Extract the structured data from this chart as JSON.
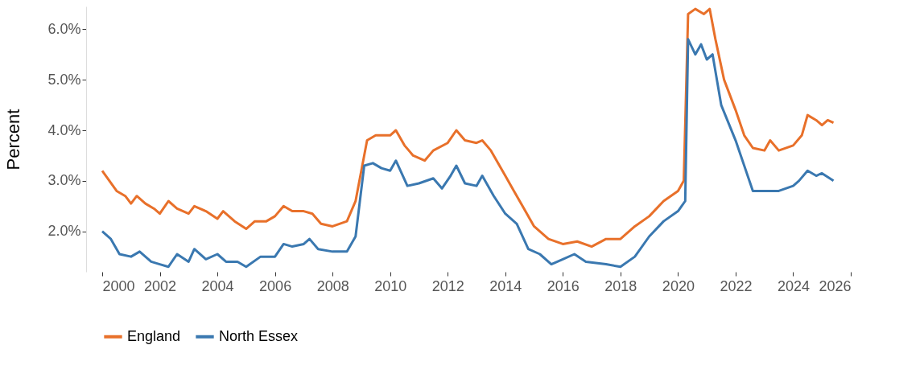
{
  "chart_data": {
    "type": "line",
    "ylabel": "Percent",
    "legend": "bottom",
    "grid": false,
    "line_style": "solid",
    "xlim": [
      2000,
      2026
    ],
    "xticks": [
      2000,
      2002,
      2004,
      2006,
      2008,
      2010,
      2012,
      2014,
      2016,
      2018,
      2020,
      2022,
      2024,
      2026
    ],
    "ylim": [
      1.2,
      6.45
    ],
    "yticks": [
      {
        "value": 2,
        "label": "2.0%"
      },
      {
        "value": 3,
        "label": "3.0%"
      },
      {
        "value": 4,
        "label": "4.0%"
      },
      {
        "value": 5,
        "label": "5.0%"
      },
      {
        "value": 6,
        "label": "6.0%"
      }
    ],
    "series": [
      {
        "name": "England",
        "color": "#e8702a",
        "x": [
          2000,
          2000.5,
          2000.8,
          2001,
          2001.2,
          2001.5,
          2001.8,
          2002,
          2002.3,
          2002.6,
          2003,
          2003.2,
          2003.6,
          2004,
          2004.2,
          2004.6,
          2005,
          2005.3,
          2005.7,
          2006,
          2006.3,
          2006.6,
          2007,
          2007.3,
          2007.6,
          2008,
          2008.5,
          2008.8,
          2009,
          2009.2,
          2009.5,
          2010,
          2010.2,
          2010.5,
          2010.8,
          2011.2,
          2011.5,
          2012,
          2012.3,
          2012.6,
          2013,
          2013.2,
          2013.5,
          2014,
          2014.3,
          2014.6,
          2015,
          2015.5,
          2016,
          2016.5,
          2017,
          2017.5,
          2018,
          2018.5,
          2019,
          2019.5,
          2020,
          2020.2,
          2020.35,
          2020.6,
          2020.9,
          2021.1,
          2021.3,
          2021.6,
          2022,
          2022.3,
          2022.6,
          2023,
          2023.2,
          2023.5,
          2024,
          2024.3,
          2024.5,
          2024.8,
          2025,
          2025.2,
          2025.4
        ],
        "values": [
          3.2,
          2.8,
          2.7,
          2.55,
          2.7,
          2.55,
          2.45,
          2.35,
          2.6,
          2.45,
          2.35,
          2.5,
          2.4,
          2.25,
          2.4,
          2.2,
          2.05,
          2.2,
          2.2,
          2.3,
          2.5,
          2.4,
          2.4,
          2.35,
          2.15,
          2.1,
          2.2,
          2.6,
          3.2,
          3.8,
          3.9,
          3.9,
          4.0,
          3.7,
          3.5,
          3.4,
          3.6,
          3.75,
          4.0,
          3.8,
          3.75,
          3.8,
          3.6,
          3.1,
          2.8,
          2.5,
          2.1,
          1.85,
          1.75,
          1.8,
          1.7,
          1.85,
          1.85,
          2.1,
          2.3,
          2.6,
          2.8,
          3.0,
          6.3,
          6.4,
          6.3,
          6.4,
          5.8,
          5.0,
          4.4,
          3.9,
          3.65,
          3.6,
          3.8,
          3.6,
          3.7,
          3.9,
          4.3,
          4.2,
          4.1,
          4.2,
          4.15
        ]
      },
      {
        "name": "North Essex",
        "color": "#3a78b0",
        "x": [
          2000,
          2000.3,
          2000.6,
          2001,
          2001.3,
          2001.7,
          2002,
          2002.3,
          2002.6,
          2003,
          2003.2,
          2003.6,
          2004,
          2004.3,
          2004.7,
          2005,
          2005.5,
          2006,
          2006.3,
          2006.6,
          2007,
          2007.2,
          2007.5,
          2008,
          2008.5,
          2008.8,
          2009.1,
          2009.4,
          2009.7,
          2010,
          2010.2,
          2010.6,
          2011,
          2011.5,
          2011.8,
          2012.1,
          2012.3,
          2012.6,
          2013,
          2013.2,
          2013.6,
          2014,
          2014.4,
          2014.8,
          2015.2,
          2015.6,
          2016,
          2016.4,
          2016.8,
          2017.5,
          2018,
          2018.5,
          2019,
          2019.5,
          2020,
          2020.25,
          2020.35,
          2020.6,
          2020.8,
          2021,
          2021.2,
          2021.5,
          2022,
          2022.3,
          2022.6,
          2023,
          2023.5,
          2024,
          2024.2,
          2024.5,
          2024.8,
          2025,
          2025.4
        ],
        "values": [
          2.0,
          1.85,
          1.55,
          1.5,
          1.6,
          1.4,
          1.35,
          1.3,
          1.55,
          1.4,
          1.65,
          1.45,
          1.55,
          1.4,
          1.4,
          1.3,
          1.5,
          1.5,
          1.75,
          1.7,
          1.75,
          1.85,
          1.65,
          1.6,
          1.6,
          1.9,
          3.3,
          3.35,
          3.25,
          3.2,
          3.4,
          2.9,
          2.95,
          3.05,
          2.85,
          3.1,
          3.3,
          2.95,
          2.9,
          3.1,
          2.7,
          2.35,
          2.15,
          1.65,
          1.55,
          1.35,
          1.45,
          1.55,
          1.4,
          1.35,
          1.3,
          1.5,
          1.9,
          2.2,
          2.4,
          2.6,
          5.8,
          5.5,
          5.7,
          5.4,
          5.5,
          4.5,
          3.8,
          3.3,
          2.8,
          2.8,
          2.8,
          2.9,
          3.0,
          3.2,
          3.1,
          3.15,
          3.0
        ]
      }
    ]
  }
}
